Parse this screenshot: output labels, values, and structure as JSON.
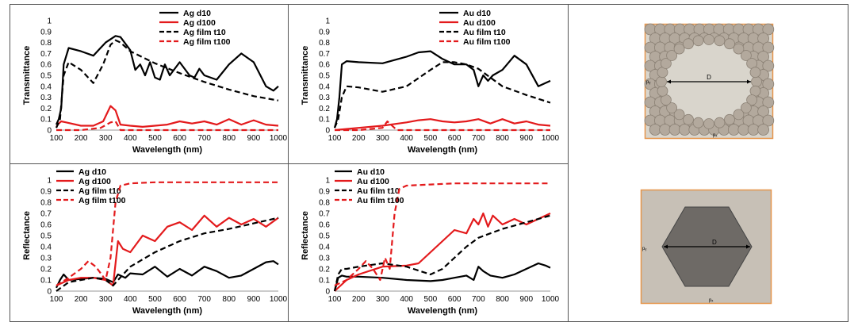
{
  "chart_data": [
    {
      "type": "line",
      "xlabel": "Wavelength (nm)",
      "ylabel": "Transmittance",
      "xlim": [
        100,
        1000
      ],
      "ylim": [
        0,
        1
      ],
      "xticks": [
        "100",
        "200",
        "300",
        "400",
        "500",
        "600",
        "700",
        "800",
        "900",
        "1000"
      ],
      "yticks": [
        "0",
        "0.1",
        "0.2",
        "0.3",
        "0.4",
        "0.5",
        "0.6",
        "0.7",
        "0.8",
        "0.9",
        "1"
      ],
      "legend_position": "top-right",
      "series": [
        {
          "name": "Ag d10",
          "color": "#000000",
          "dash": false,
          "x": [
            100,
            110,
            120,
            130,
            150,
            200,
            250,
            300,
            340,
            360,
            400,
            420,
            440,
            460,
            480,
            500,
            520,
            540,
            560,
            600,
            640,
            660,
            680,
            700,
            750,
            800,
            850,
            900,
            950,
            980,
            1000
          ],
          "y": [
            0.05,
            0.1,
            0.2,
            0.6,
            0.75,
            0.72,
            0.68,
            0.8,
            0.86,
            0.85,
            0.73,
            0.55,
            0.6,
            0.5,
            0.62,
            0.48,
            0.46,
            0.6,
            0.5,
            0.62,
            0.5,
            0.48,
            0.56,
            0.5,
            0.46,
            0.6,
            0.7,
            0.62,
            0.4,
            0.36,
            0.4
          ]
        },
        {
          "name": "Ag d100",
          "color": "#e31a1c",
          "dash": false,
          "x": [
            100,
            110,
            120,
            140,
            200,
            250,
            290,
            320,
            340,
            360,
            400,
            450,
            500,
            550,
            600,
            650,
            700,
            750,
            800,
            850,
            900,
            950,
            1000
          ],
          "y": [
            0.03,
            0.06,
            0.08,
            0.07,
            0.04,
            0.04,
            0.08,
            0.22,
            0.18,
            0.05,
            0.04,
            0.03,
            0.04,
            0.05,
            0.08,
            0.06,
            0.08,
            0.05,
            0.1,
            0.05,
            0.09,
            0.05,
            0.04
          ]
        },
        {
          "name": "Ag film t10",
          "color": "#000000",
          "dash": true,
          "x": [
            100,
            115,
            130,
            150,
            200,
            250,
            290,
            320,
            340,
            360,
            400,
            500,
            600,
            700,
            800,
            900,
            1000
          ],
          "y": [
            0.02,
            0.1,
            0.5,
            0.62,
            0.55,
            0.43,
            0.6,
            0.78,
            0.82,
            0.8,
            0.72,
            0.61,
            0.52,
            0.44,
            0.37,
            0.31,
            0.27
          ]
        },
        {
          "name": "Ag film t100",
          "color": "#e31a1c",
          "dash": true,
          "x": [
            100,
            150,
            200,
            280,
            320,
            340,
            360,
            400,
            500,
            600,
            700,
            800,
            900,
            1000
          ],
          "y": [
            0.0,
            0.0,
            0.0,
            0.02,
            0.07,
            0.08,
            0.0,
            0.0,
            0.0,
            0.0,
            0.0,
            0.0,
            0.0,
            0.0
          ]
        }
      ]
    },
    {
      "type": "line",
      "xlabel": "Wavelength (nm)",
      "ylabel": "Transmittance",
      "xlim": [
        100,
        1000
      ],
      "ylim": [
        0,
        1
      ],
      "xticks": [
        "100",
        "200",
        "300",
        "400",
        "500",
        "600",
        "700",
        "800",
        "900",
        "1000"
      ],
      "yticks": [
        "0",
        "0.1",
        "0.2",
        "0.3",
        "0.4",
        "0.5",
        "0.6",
        "0.7",
        "0.8",
        "0.9",
        "1"
      ],
      "legend_position": "top-right",
      "series": [
        {
          "name": "Au d10",
          "color": "#000000",
          "dash": false,
          "x": [
            100,
            110,
            120,
            130,
            150,
            200,
            300,
            400,
            450,
            500,
            550,
            600,
            650,
            680,
            700,
            720,
            740,
            760,
            800,
            850,
            900,
            950,
            1000
          ],
          "y": [
            0.02,
            0.1,
            0.3,
            0.6,
            0.63,
            0.62,
            0.61,
            0.67,
            0.71,
            0.72,
            0.65,
            0.6,
            0.6,
            0.55,
            0.4,
            0.5,
            0.45,
            0.5,
            0.55,
            0.68,
            0.6,
            0.4,
            0.45
          ]
        },
        {
          "name": "Au d100",
          "color": "#e31a1c",
          "dash": false,
          "x": [
            100,
            150,
            200,
            300,
            400,
            450,
            500,
            550,
            600,
            650,
            700,
            750,
            800,
            850,
            900,
            950,
            1000
          ],
          "y": [
            0.0,
            0.01,
            0.02,
            0.04,
            0.07,
            0.09,
            0.1,
            0.08,
            0.07,
            0.08,
            0.1,
            0.06,
            0.1,
            0.06,
            0.08,
            0.05,
            0.04
          ]
        },
        {
          "name": "Au film t10",
          "color": "#000000",
          "dash": true,
          "x": [
            100,
            115,
            130,
            150,
            200,
            300,
            400,
            500,
            550,
            600,
            650,
            700,
            750,
            800,
            900,
            1000
          ],
          "y": [
            0.02,
            0.1,
            0.3,
            0.4,
            0.39,
            0.35,
            0.4,
            0.55,
            0.62,
            0.62,
            0.6,
            0.56,
            0.48,
            0.4,
            0.32,
            0.25
          ]
        },
        {
          "name": "Au film t100",
          "color": "#e31a1c",
          "dash": true,
          "x": [
            100,
            200,
            300,
            320,
            340,
            360,
            400,
            500,
            600,
            700,
            800,
            900,
            1000
          ],
          "y": [
            0.0,
            0.0,
            0.02,
            0.08,
            0.04,
            0.0,
            0.0,
            0.0,
            0.0,
            0.0,
            0.0,
            0.0,
            0.0
          ]
        }
      ]
    },
    {
      "type": "line",
      "xlabel": "Wavelength (nm)",
      "ylabel": "Reflectance",
      "xlim": [
        100,
        1000
      ],
      "ylim": [
        0,
        1
      ],
      "xticks": [
        "100",
        "200",
        "300",
        "400",
        "500",
        "600",
        "700",
        "800",
        "900",
        "1000"
      ],
      "yticks": [
        "0",
        "0.1",
        "0.2",
        "0.3",
        "0.4",
        "0.5",
        "0.6",
        "0.7",
        "0.8",
        "0.9",
        "1"
      ],
      "legend_position": "top-left",
      "series": [
        {
          "name": "Ag d10",
          "color": "#000000",
          "dash": false,
          "x": [
            100,
            115,
            130,
            150,
            200,
            250,
            300,
            330,
            350,
            380,
            400,
            450,
            500,
            550,
            600,
            650,
            700,
            750,
            800,
            850,
            900,
            950,
            980,
            1000
          ],
          "y": [
            0.03,
            0.1,
            0.15,
            0.1,
            0.11,
            0.12,
            0.11,
            0.08,
            0.15,
            0.12,
            0.16,
            0.15,
            0.22,
            0.13,
            0.2,
            0.14,
            0.22,
            0.18,
            0.12,
            0.14,
            0.2,
            0.26,
            0.27,
            0.24
          ]
        },
        {
          "name": "Ag d100",
          "color": "#e31a1c",
          "dash": false,
          "x": [
            100,
            150,
            200,
            250,
            300,
            330,
            350,
            370,
            400,
            450,
            500,
            550,
            600,
            650,
            700,
            750,
            800,
            850,
            900,
            950,
            1000
          ],
          "y": [
            0.05,
            0.1,
            0.12,
            0.12,
            0.1,
            0.05,
            0.45,
            0.38,
            0.35,
            0.5,
            0.45,
            0.58,
            0.62,
            0.55,
            0.68,
            0.58,
            0.66,
            0.6,
            0.65,
            0.58,
            0.66
          ]
        },
        {
          "name": "Ag film t10",
          "color": "#000000",
          "dash": true,
          "x": [
            100,
            150,
            200,
            250,
            300,
            330,
            350,
            400,
            500,
            600,
            700,
            800,
            900,
            1000
          ],
          "y": [
            0.0,
            0.08,
            0.1,
            0.12,
            0.1,
            0.05,
            0.1,
            0.22,
            0.35,
            0.45,
            0.52,
            0.56,
            0.61,
            0.66
          ]
        },
        {
          "name": "Ag film t100",
          "color": "#e31a1c",
          "dash": true,
          "x": [
            100,
            150,
            200,
            230,
            260,
            300,
            320,
            340,
            360,
            400,
            500,
            600,
            700,
            800,
            900,
            1000
          ],
          "y": [
            0.05,
            0.12,
            0.2,
            0.27,
            0.22,
            0.1,
            0.3,
            0.8,
            0.95,
            0.97,
            0.98,
            0.98,
            0.98,
            0.98,
            0.98,
            0.98
          ]
        }
      ]
    },
    {
      "type": "line",
      "xlabel": "Wavelength (nm)",
      "ylabel": "Reflectance",
      "xlim": [
        100,
        1000
      ],
      "ylim": [
        0,
        1
      ],
      "xticks": [
        "100",
        "200",
        "300",
        "400",
        "500",
        "600",
        "700",
        "800",
        "900",
        "1000"
      ],
      "yticks": [
        "0",
        "0.1",
        "0.2",
        "0.3",
        "0.4",
        "0.5",
        "0.6",
        "0.7",
        "0.8",
        "0.9",
        "1"
      ],
      "legend_position": "top-left",
      "series": [
        {
          "name": "Au d10",
          "color": "#000000",
          "dash": false,
          "x": [
            100,
            115,
            130,
            150,
            200,
            300,
            400,
            500,
            550,
            600,
            650,
            680,
            700,
            720,
            750,
            800,
            850,
            900,
            950,
            980,
            1000
          ],
          "y": [
            0.0,
            0.12,
            0.14,
            0.13,
            0.13,
            0.12,
            0.1,
            0.09,
            0.1,
            0.12,
            0.14,
            0.1,
            0.22,
            0.18,
            0.14,
            0.12,
            0.15,
            0.2,
            0.25,
            0.23,
            0.21
          ]
        },
        {
          "name": "Au d100",
          "color": "#e31a1c",
          "dash": false,
          "x": [
            100,
            150,
            200,
            300,
            400,
            450,
            500,
            550,
            600,
            650,
            680,
            700,
            720,
            740,
            760,
            800,
            850,
            900,
            950,
            1000
          ],
          "y": [
            0.0,
            0.1,
            0.15,
            0.22,
            0.23,
            0.25,
            0.35,
            0.45,
            0.55,
            0.52,
            0.65,
            0.6,
            0.7,
            0.58,
            0.68,
            0.6,
            0.65,
            0.6,
            0.65,
            0.7
          ]
        },
        {
          "name": "Au film t10",
          "color": "#000000",
          "dash": true,
          "x": [
            100,
            115,
            130,
            150,
            200,
            300,
            400,
            500,
            550,
            600,
            650,
            700,
            750,
            800,
            900,
            1000
          ],
          "y": [
            0.0,
            0.15,
            0.2,
            0.2,
            0.22,
            0.25,
            0.22,
            0.15,
            0.2,
            0.3,
            0.4,
            0.48,
            0.52,
            0.56,
            0.62,
            0.68
          ]
        },
        {
          "name": "Au film t100",
          "color": "#e31a1c",
          "dash": true,
          "x": [
            100,
            150,
            200,
            230,
            260,
            290,
            310,
            330,
            350,
            370,
            400,
            500,
            600,
            700,
            800,
            900,
            1000
          ],
          "y": [
            0.05,
            0.1,
            0.2,
            0.27,
            0.2,
            0.1,
            0.3,
            0.2,
            0.7,
            0.92,
            0.95,
            0.96,
            0.97,
            0.97,
            0.97,
            0.97,
            0.97
          ]
        }
      ]
    }
  ],
  "diagrams": {
    "top": {
      "diameter_label": "D",
      "left_label": "pᵧ",
      "bottom_label": "pₓ"
    },
    "bottom": {
      "diameter_label": "D",
      "left_label": "pᵧ",
      "bottom_label": "pₓ"
    }
  },
  "colors": {
    "sphere": "#b3a99d",
    "sphere_edge": "#8b8175",
    "hole": "#d9d5cc",
    "frame": "#e5954b",
    "hex_fill": "#6e6a66",
    "hex_bg": "#c7c0b6"
  }
}
